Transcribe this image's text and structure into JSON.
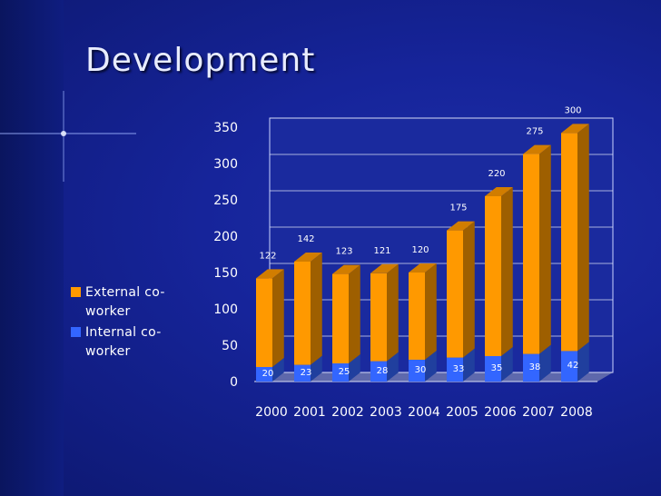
{
  "slide": {
    "title": "Development"
  },
  "legend": {
    "items": [
      {
        "label": "External co-worker",
        "color": "#ff9900"
      },
      {
        "label": "Internal co-worker",
        "color": "#3366ff"
      }
    ]
  },
  "chart_data": {
    "type": "bar",
    "stacked": true,
    "three_d": true,
    "categories": [
      "2000",
      "2001",
      "2002",
      "2003",
      "2004",
      "2005",
      "2006",
      "2007",
      "2008"
    ],
    "series": [
      {
        "name": "Internal co-worker",
        "color": "#3366ff",
        "values": [
          20,
          23,
          25,
          28,
          30,
          33,
          35,
          38,
          42
        ]
      },
      {
        "name": "External co-worker",
        "color": "#ff9900",
        "values": [
          122,
          142,
          123,
          121,
          120,
          175,
          220,
          275,
          300
        ]
      }
    ],
    "ylim": [
      0,
      350
    ],
    "yticks": [
      0,
      50,
      100,
      150,
      200,
      250,
      300,
      350
    ],
    "grid": true,
    "legend_position": "left",
    "data_labels": true
  }
}
